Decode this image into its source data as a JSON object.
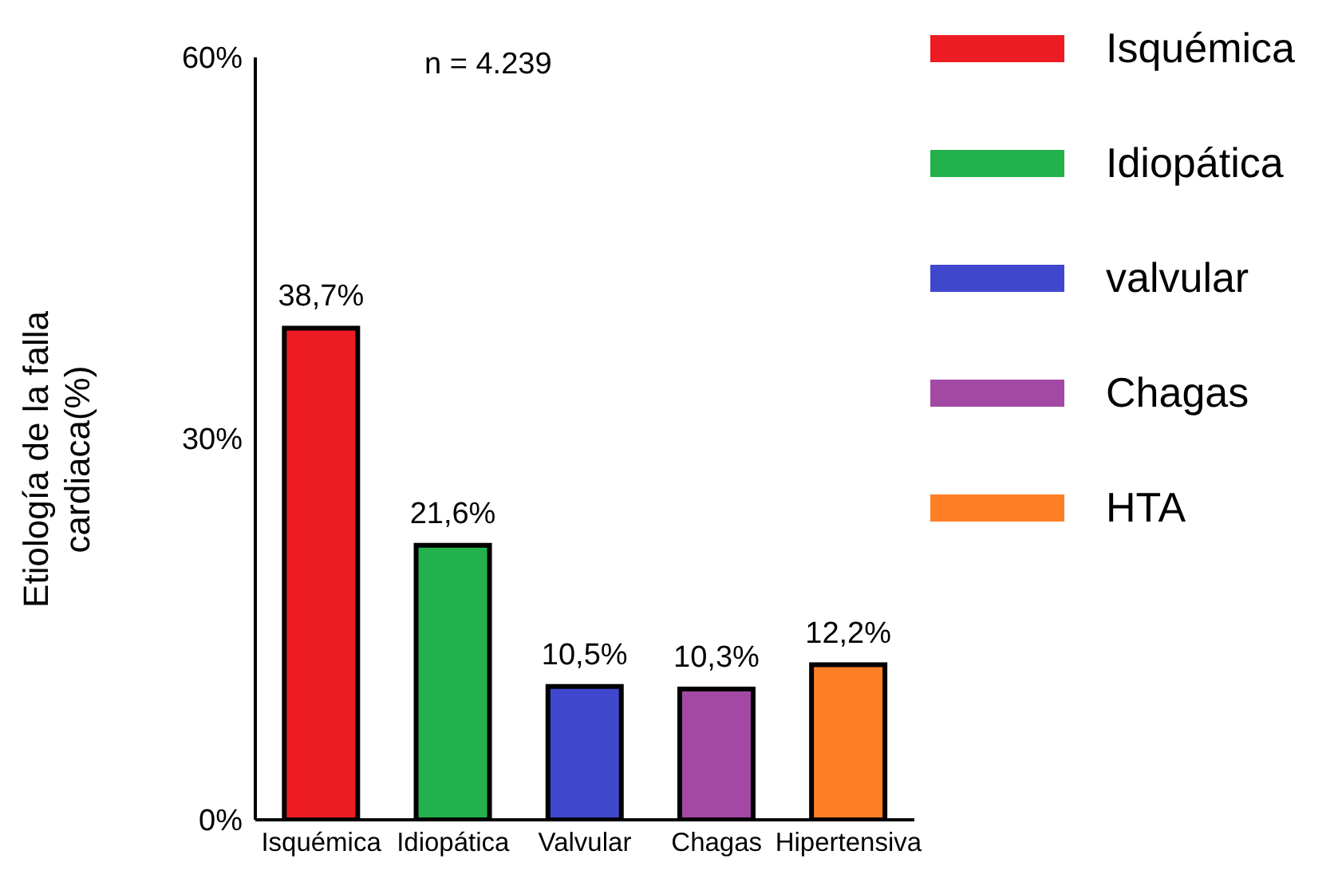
{
  "chart_data": {
    "type": "bar",
    "ylabel": "Etiología de la falla cardiaca(%)",
    "categories": [
      "Isquémica",
      "Idiopática",
      "Valvular",
      "Chagas",
      "Hipertensiva"
    ],
    "series": [
      {
        "name": "Isquémica",
        "color": "#ed1c24",
        "values": [
          38.7,
          null,
          null,
          null,
          null
        ],
        "value_labels": [
          "38,7%",
          null,
          null,
          null,
          null
        ]
      },
      {
        "name": "Idiopática",
        "color": "#22b14c",
        "values": [
          null,
          21.6,
          null,
          null,
          null
        ],
        "value_labels": [
          null,
          "21,6%",
          null,
          null,
          null
        ]
      },
      {
        "name": "valvular",
        "color": "#3f48cc",
        "values": [
          null,
          null,
          10.5,
          null,
          null
        ],
        "value_labels": [
          null,
          null,
          "10,5%",
          null,
          null
        ]
      },
      {
        "name": "Chagas",
        "color": "#a349a4",
        "values": [
          null,
          null,
          null,
          10.3,
          null
        ],
        "value_labels": [
          null,
          null,
          null,
          "10,3%",
          null
        ]
      },
      {
        "name": "HTA",
        "color": "#ff7f27",
        "values": [
          null,
          null,
          null,
          null,
          12.2
        ],
        "value_labels": [
          null,
          null,
          null,
          null,
          "12,2%"
        ]
      }
    ],
    "ylim": [
      0,
      60
    ],
    "yticks": [
      {
        "value": 0,
        "label": "0%"
      },
      {
        "value": 30,
        "label": "30%"
      },
      {
        "value": 60,
        "label": "60%"
      }
    ],
    "annotations": [
      "n = 4.239"
    ],
    "grid": false,
    "legend": "right"
  }
}
